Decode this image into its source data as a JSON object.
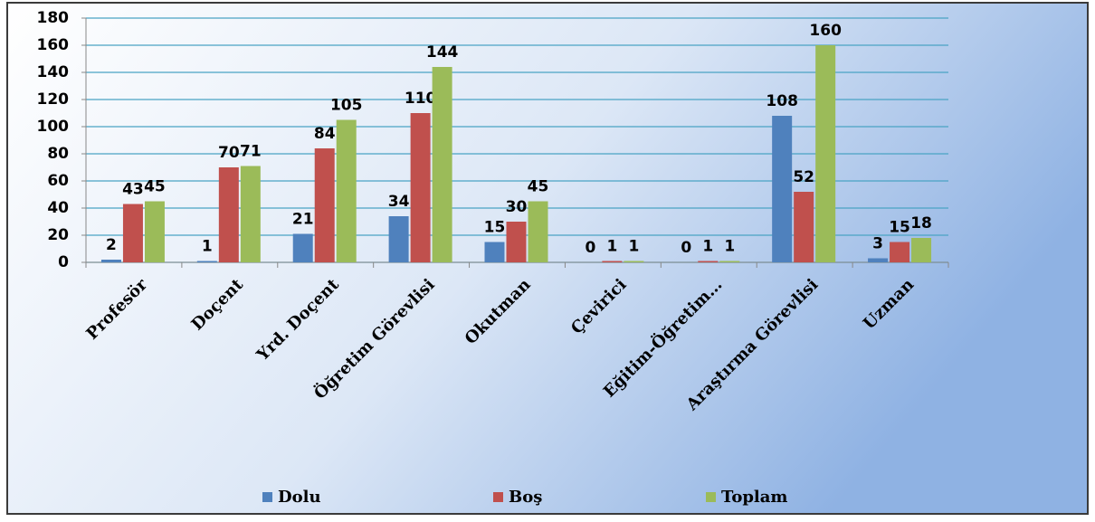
{
  "chart_data": {
    "type": "bar",
    "categories": [
      "Profesör",
      "Doçent",
      "Yrd. Doçent",
      "Öğretim Görevlisi",
      "Okutman",
      "Çevirici",
      "Eğitim-Öğretim…",
      "Araştırma Görevlisi",
      "Uzman"
    ],
    "series": [
      {
        "name": "Dolu",
        "color": "#4f81bd",
        "values": [
          2,
          1,
          21,
          34,
          15,
          0,
          0,
          108,
          3
        ]
      },
      {
        "name": "Boş",
        "color": "#c0504d",
        "values": [
          43,
          70,
          84,
          110,
          30,
          1,
          1,
          52,
          15
        ]
      },
      {
        "name": "Toplam",
        "color": "#9bbb59",
        "values": [
          45,
          71,
          105,
          144,
          45,
          1,
          1,
          160,
          18
        ]
      }
    ],
    "ylim": [
      0,
      180
    ],
    "yticks": [
      0,
      20,
      40,
      60,
      80,
      100,
      120,
      140,
      160,
      180
    ],
    "grid": true,
    "legend": "bottom"
  }
}
